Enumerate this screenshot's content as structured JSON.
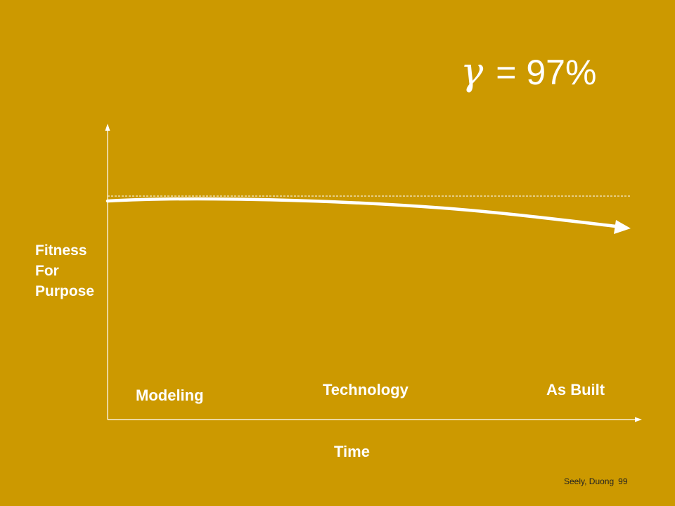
{
  "formula": {
    "symbol": "γ",
    "text": "= 97%"
  },
  "y_axis_label": "Fitness\nFor\nPurpose",
  "x_axis_label": "Time",
  "phases": {
    "modeling": "Modeling",
    "technology": "Technology",
    "as_built": "As Built"
  },
  "footer": {
    "authors": "Seely, Duong",
    "page": "99"
  },
  "colors": {
    "background": "#CC9900",
    "foreground": "#FFFFFF",
    "footer_text": "#222222"
  }
}
